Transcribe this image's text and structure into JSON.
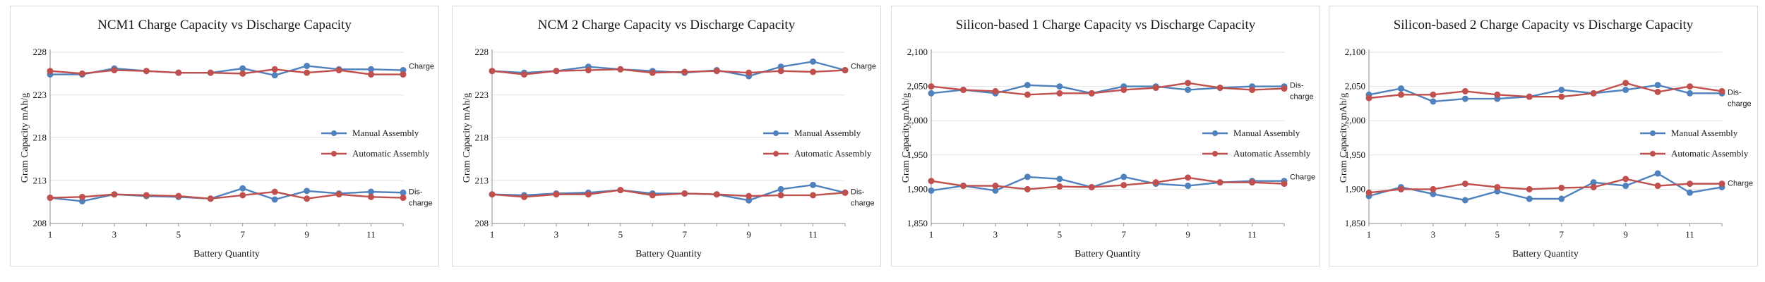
{
  "colors": {
    "manual": "#4f81bd",
    "automatic": "#c0504d",
    "axis": "#8c8c8c"
  },
  "chart_data": [
    {
      "type": "line",
      "title": "NCM1 Charge Capacity vs Discharge Capacity",
      "xlabel": "Battery Quantity",
      "ylabel": "Gram Capacity mAh/g",
      "x": [
        1,
        2,
        3,
        4,
        5,
        6,
        7,
        8,
        9,
        10,
        11,
        12
      ],
      "xticks": [
        "1",
        "3",
        "5",
        "7",
        "9",
        "11"
      ],
      "ylim": [
        208,
        228
      ],
      "yticks": [
        "208",
        "213",
        "218",
        "223",
        "228"
      ],
      "legend": [
        "Manual Assembly",
        "Automatic Assembly"
      ],
      "legend_position": "right",
      "series": [
        {
          "name": "Manual Assembly",
          "group": "Charge",
          "values": [
            225.4,
            225.4,
            226.1,
            225.8,
            225.6,
            225.6,
            226.1,
            225.3,
            226.4,
            226.0,
            226.0,
            225.9
          ]
        },
        {
          "name": "Automatic Assembly",
          "group": "Charge",
          "values": [
            225.8,
            225.5,
            225.9,
            225.8,
            225.6,
            225.6,
            225.5,
            226.0,
            225.6,
            225.9,
            225.4,
            225.4
          ]
        },
        {
          "name": "Manual Assembly",
          "group": "Dis-charge",
          "values": [
            211.0,
            210.6,
            211.4,
            211.2,
            211.1,
            210.9,
            212.1,
            210.8,
            211.8,
            211.5,
            211.7,
            211.6
          ]
        },
        {
          "name": "Automatic Assembly",
          "group": "Dis-charge",
          "values": [
            211.0,
            211.1,
            211.4,
            211.3,
            211.2,
            210.9,
            211.3,
            211.7,
            210.9,
            211.4,
            211.1,
            211.0
          ]
        }
      ],
      "end_labels": [
        {
          "lines": [
            "Charge"
          ]
        },
        {
          "lines": [
            "Dis-",
            "charge"
          ]
        }
      ]
    },
    {
      "type": "line",
      "title": "NCM 2 Charge Capacity vs Discharge Capacity",
      "xlabel": "Battery Quantity",
      "ylabel": "Gram Capacity mAh/g",
      "x": [
        1,
        2,
        3,
        4,
        5,
        6,
        7,
        8,
        9,
        10,
        11,
        12
      ],
      "xticks": [
        "1",
        "3",
        "5",
        "7",
        "9",
        "11"
      ],
      "ylim": [
        208,
        228
      ],
      "yticks": [
        "208",
        "213",
        "218",
        "223",
        "228"
      ],
      "legend": [
        "Manual Assembly",
        "Automatic Assembly"
      ],
      "legend_position": "right",
      "series": [
        {
          "name": "Manual Assembly",
          "group": "Charge",
          "values": [
            225.8,
            225.6,
            225.8,
            226.3,
            226.0,
            225.8,
            225.6,
            225.9,
            225.2,
            226.3,
            226.9,
            225.9
          ]
        },
        {
          "name": "Automatic Assembly",
          "group": "Charge",
          "values": [
            225.8,
            225.4,
            225.8,
            225.9,
            226.0,
            225.6,
            225.7,
            225.8,
            225.6,
            225.8,
            225.7,
            225.9
          ]
        },
        {
          "name": "Manual Assembly",
          "group": "Dis-charge",
          "values": [
            211.4,
            211.3,
            211.5,
            211.6,
            211.9,
            211.5,
            211.5,
            211.4,
            210.7,
            212.0,
            212.5,
            211.6
          ]
        },
        {
          "name": "Automatic Assembly",
          "group": "Dis-charge",
          "values": [
            211.4,
            211.1,
            211.4,
            211.4,
            211.9,
            211.3,
            211.5,
            211.4,
            211.2,
            211.3,
            211.3,
            211.6
          ]
        }
      ],
      "end_labels": [
        {
          "lines": [
            "Charge"
          ]
        },
        {
          "lines": [
            "Dis-",
            "charge"
          ]
        }
      ]
    },
    {
      "type": "line",
      "title": "Silicon-based 1 Charge Capacity vs Discharge Capacity",
      "xlabel": "Battery Quantity",
      "ylabel": "Gram Capacity mAh/g",
      "x": [
        1,
        2,
        3,
        4,
        5,
        6,
        7,
        8,
        9,
        10,
        11,
        12
      ],
      "xticks": [
        "1",
        "3",
        "5",
        "7",
        "9",
        "11"
      ],
      "ylim": [
        1850,
        2100
      ],
      "yticks": [
        "1,850",
        "1,900",
        "1,950",
        "2,000",
        "2,050",
        "2,100"
      ],
      "legend": [
        "Manual Assembly",
        "Automatic Assembly"
      ],
      "legend_position": "right",
      "series": [
        {
          "name": "Manual Assembly",
          "group": "Charge",
          "values": [
            2040,
            2045,
            2040,
            2052,
            2050,
            2040,
            2050,
            2050,
            2045,
            2048,
            2050,
            2050
          ]
        },
        {
          "name": "Automatic Assembly",
          "group": "Charge",
          "values": [
            2050,
            2045,
            2043,
            2038,
            2040,
            2040,
            2045,
            2048,
            2055,
            2048,
            2045,
            2047
          ]
        },
        {
          "name": "Manual Assembly",
          "group": "Dis-charge",
          "values": [
            1898,
            1905,
            1898,
            1918,
            1915,
            1903,
            1918,
            1908,
            1905,
            1910,
            1912,
            1912
          ]
        },
        {
          "name": "Automatic Assembly",
          "group": "Dis-charge",
          "values": [
            1912,
            1905,
            1905,
            1900,
            1904,
            1903,
            1906,
            1910,
            1917,
            1910,
            1910,
            1908
          ]
        }
      ],
      "end_labels": [
        {
          "lines": [
            "Dis-",
            "charge"
          ]
        },
        {
          "lines": [
            "Charge"
          ]
        }
      ]
    },
    {
      "type": "line",
      "title": "Silicon-based 2 Charge Capacity vs Discharge Capacity",
      "xlabel": "Battery Quantity",
      "ylabel": "Gram Capacity mAh/g",
      "x": [
        1,
        2,
        3,
        4,
        5,
        6,
        7,
        8,
        9,
        10,
        11,
        12
      ],
      "xticks": [
        "1",
        "3",
        "5",
        "7",
        "9",
        "11"
      ],
      "ylim": [
        1850,
        2100
      ],
      "yticks": [
        "1,850",
        "1,900",
        "1,950",
        "2,000",
        "2,050",
        "2,100"
      ],
      "legend": [
        "Manual Assembly",
        "Automatic Assembly"
      ],
      "legend_position": "right",
      "series": [
        {
          "name": "Manual Assembly",
          "group": "Charge",
          "values": [
            2038,
            2047,
            2028,
            2032,
            2032,
            2035,
            2045,
            2040,
            2045,
            2052,
            2040,
            2040
          ]
        },
        {
          "name": "Automatic Assembly",
          "group": "Charge",
          "values": [
            2033,
            2038,
            2038,
            2043,
            2038,
            2035,
            2035,
            2040,
            2055,
            2042,
            2050,
            2043
          ]
        },
        {
          "name": "Manual Assembly",
          "group": "Dis-charge",
          "values": [
            1890,
            1903,
            1893,
            1884,
            1897,
            1886,
            1886,
            1910,
            1905,
            1923,
            1895,
            1903
          ]
        },
        {
          "name": "Automatic Assembly",
          "group": "Dis-charge",
          "values": [
            1895,
            1900,
            1900,
            1908,
            1903,
            1900,
            1902,
            1903,
            1915,
            1905,
            1908,
            1908
          ]
        }
      ],
      "end_labels": [
        {
          "lines": [
            "Dis-",
            "charge"
          ]
        },
        {
          "lines": [
            "Charge"
          ]
        }
      ]
    }
  ]
}
